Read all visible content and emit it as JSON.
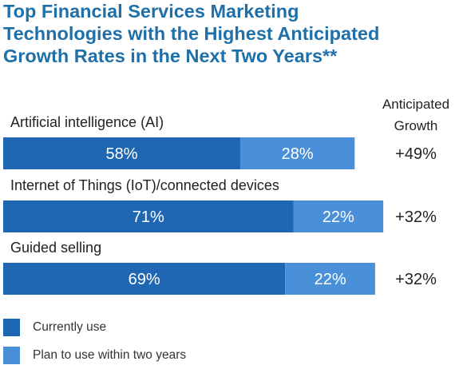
{
  "title_lines": [
    "Top Financial Services Marketing",
    "Technologies with the Highest Anticipated",
    "Growth Rates in the Next Two Years**"
  ],
  "column_header": [
    "Anticipated",
    "Growth"
  ],
  "colors": {
    "title": "#1f6fa8",
    "currently_use": "#1f67b3",
    "plan_to_use": "#4a90d9",
    "bar_text": "#ffffff",
    "text": "#222222"
  },
  "chart_data": {
    "type": "bar",
    "orientation": "horizontal",
    "stacked": true,
    "categories": [
      "Artificial intelligence (AI)",
      "Internet of Things (IoT)/connected devices",
      "Guided selling"
    ],
    "series": [
      {
        "name": "Currently use",
        "values": [
          58,
          71,
          69
        ],
        "labels": [
          "58%",
          "71%",
          "69%"
        ]
      },
      {
        "name": "Plan to use within two years",
        "values": [
          28,
          22,
          22
        ],
        "labels": [
          "28%",
          "22%",
          "22%"
        ]
      }
    ],
    "growth": [
      "+49%",
      "+32%",
      "+32%"
    ],
    "xlim": [
      0,
      100
    ],
    "legend_position": "bottom-left",
    "grid": false
  }
}
